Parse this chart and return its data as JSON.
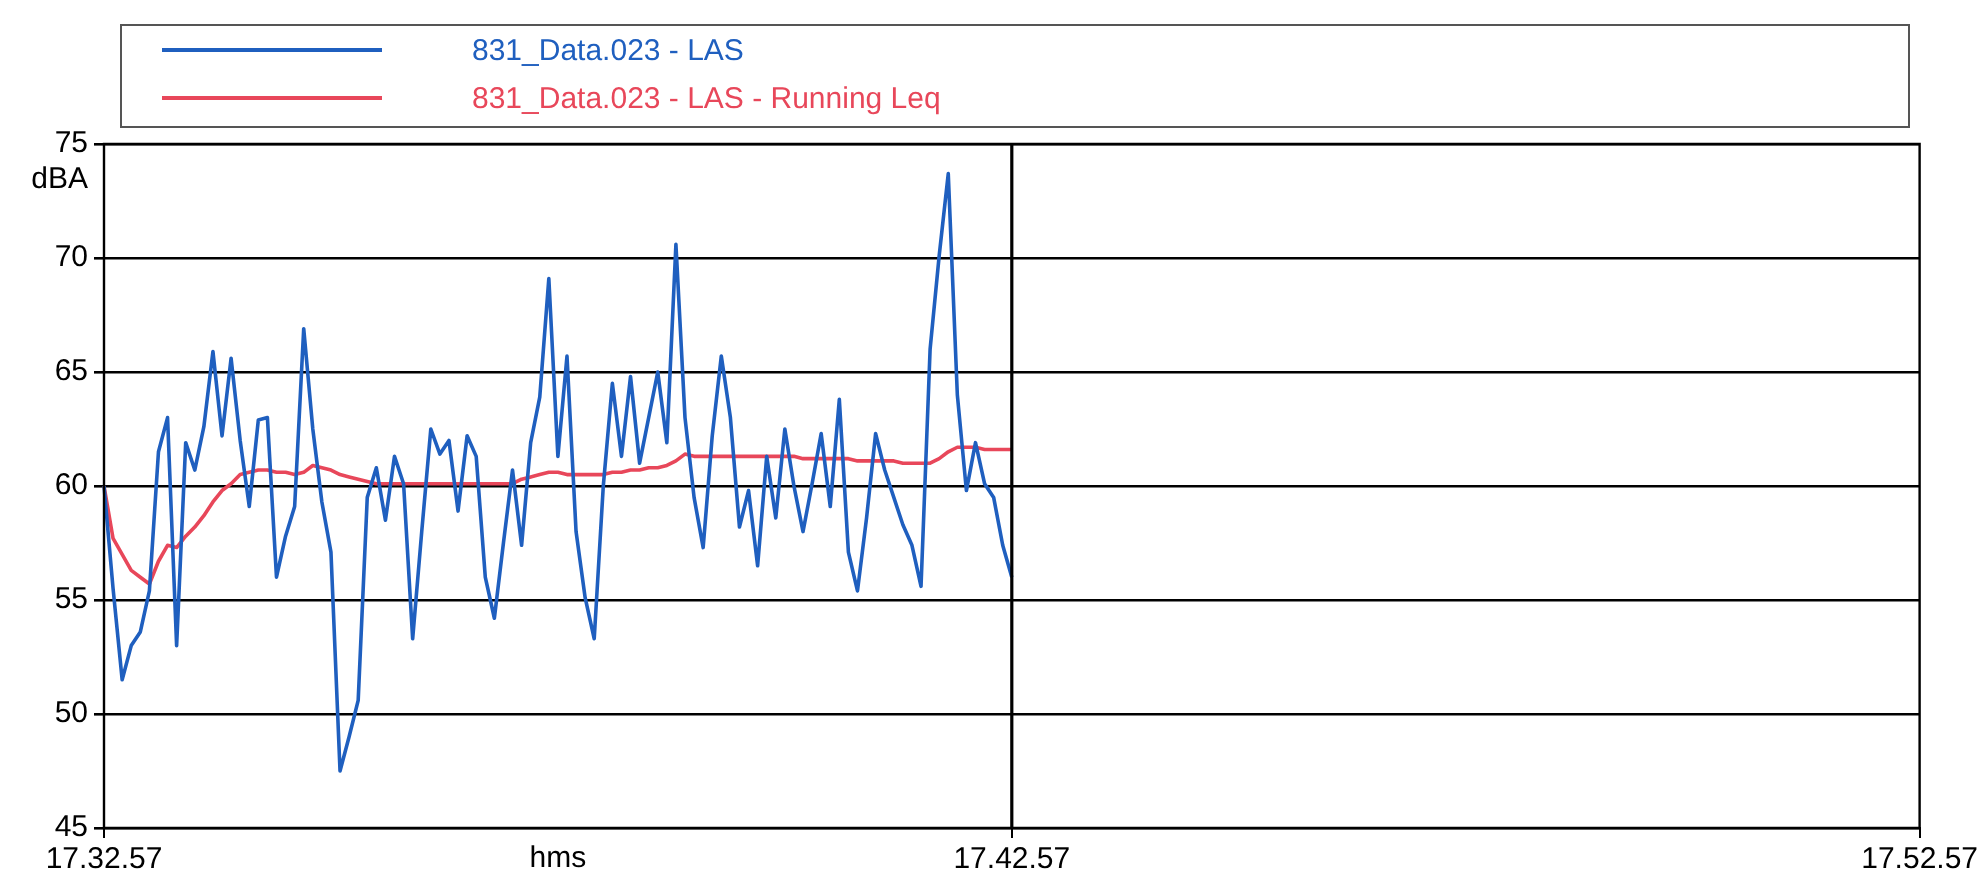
{
  "chart_data": {
    "type": "line",
    "xlabel": "hms",
    "ylabel": "dBA",
    "categories": [
      "17.32.57",
      null,
      null,
      null,
      null,
      null,
      null,
      null,
      null,
      null,
      null,
      null,
      null,
      null,
      null,
      null,
      null,
      null,
      null,
      null,
      null,
      null,
      null,
      null,
      null,
      null,
      null,
      null,
      null,
      null,
      null,
      null,
      null,
      null,
      null,
      null,
      null,
      null,
      null,
      null,
      null,
      null,
      null,
      null,
      null,
      null,
      null,
      null,
      null,
      null,
      null,
      null,
      null,
      null,
      null,
      null,
      null,
      null,
      null,
      null,
      null,
      null,
      null,
      null,
      null,
      null,
      null,
      null,
      null,
      null,
      null,
      null,
      null,
      null,
      null,
      null,
      null,
      null,
      null,
      null,
      null,
      null,
      null,
      null,
      null,
      null,
      null,
      null,
      null,
      null,
      null,
      null,
      null,
      null,
      null,
      null,
      null,
      null,
      null,
      null,
      "17.42.57",
      null,
      null,
      null,
      null,
      null,
      null,
      null,
      null,
      null,
      null,
      null,
      null,
      null,
      null,
      null,
      null,
      null,
      null,
      null,
      null,
      null,
      null,
      null,
      null,
      null,
      null,
      null,
      null,
      null,
      null,
      null,
      null,
      null,
      null,
      null,
      null,
      null,
      null,
      null,
      null,
      null,
      null,
      null,
      null,
      null,
      null,
      null,
      null,
      null,
      null,
      null,
      null,
      null,
      null,
      null,
      null,
      null,
      null,
      null,
      null,
      null,
      null,
      null,
      null,
      null,
      null,
      null,
      null,
      null,
      null,
      null,
      null,
      null,
      null,
      null,
      null,
      null,
      null,
      null,
      null,
      null,
      null,
      null,
      null,
      null,
      null,
      null,
      null,
      null,
      null,
      null,
      null,
      null,
      null,
      null,
      null,
      null,
      null,
      null,
      "17.52.57"
    ],
    "ylim": [
      45,
      75
    ],
    "yticks": [
      45,
      50,
      55,
      60,
      65,
      70,
      75
    ],
    "grid": "y",
    "legend": "top",
    "marker": "none",
    "line_style": "solid",
    "ref_lines": [
      {
        "axis": "x",
        "value": "17.42.57",
        "color": "#000000"
      }
    ],
    "series": [
      {
        "name": "831_Data.023 - LAS",
        "color": "#1f5fbf",
        "values": [
          60,
          55.5,
          51.5,
          53,
          53.6,
          55.4,
          61.5,
          63,
          53,
          61.9,
          60.7,
          62.6,
          65.9,
          62.2,
          65.6,
          62,
          59.1,
          62.9,
          63,
          56,
          57.8,
          59.1,
          66.9,
          62.5,
          59.3,
          57.1,
          47.5,
          49,
          50.6,
          59.5,
          60.8,
          58.5,
          61.3,
          60.1,
          53.3,
          58,
          62.5,
          61.4,
          62,
          58.9,
          62.2,
          61.3,
          56,
          54.2,
          57.5,
          60.7,
          57.4,
          61.9,
          63.9,
          69.1,
          61.3,
          65.7,
          58,
          55.1,
          53.3,
          60,
          64.5,
          61.3,
          64.8,
          61,
          63,
          65,
          61.9,
          70.6,
          63,
          59.5,
          57.3,
          62.2,
          65.7,
          63,
          58.2,
          59.8,
          56.5,
          61.3,
          58.6,
          62.5,
          60,
          58,
          60.1,
          62.3,
          59.1,
          63.8,
          57.1,
          55.4,
          58.6,
          62.3,
          60.7,
          59.5,
          58.3,
          57.4,
          55.6,
          66,
          70.1,
          73.7,
          64,
          59.8,
          61.9,
          60.1,
          59.5,
          57.4,
          56,
          null,
          null,
          null,
          null,
          null,
          null,
          null,
          null,
          null,
          null,
          null,
          null,
          null,
          null,
          null,
          null,
          null,
          null,
          null,
          null,
          null,
          null,
          null,
          null,
          null,
          null,
          null,
          null,
          null,
          null,
          null,
          null,
          null,
          null,
          null,
          null,
          null,
          null,
          null,
          null,
          null,
          null,
          null,
          null,
          null,
          null,
          null,
          null,
          null,
          null,
          null,
          null,
          null,
          null,
          null,
          null,
          null,
          null,
          null,
          null,
          null,
          null,
          null,
          null,
          null,
          null,
          null,
          null,
          null,
          null,
          null,
          null,
          null,
          null,
          null,
          null,
          null,
          null,
          null,
          null,
          null,
          null,
          null,
          null,
          null,
          null,
          null,
          null,
          null,
          null,
          null,
          null,
          null,
          null,
          null,
          null,
          null,
          null,
          null,
          null
        ]
      },
      {
        "name": "831_Data.023 - LAS - Running Leq",
        "color": "#e8475a",
        "values": [
          60,
          57.7,
          57,
          56.3,
          56,
          55.7,
          56.7,
          57.4,
          57.3,
          57.8,
          58.2,
          58.7,
          59.3,
          59.8,
          60.1,
          60.5,
          60.6,
          60.7,
          60.7,
          60.6,
          60.6,
          60.5,
          60.6,
          60.9,
          60.8,
          60.7,
          60.5,
          60.4,
          60.3,
          60.2,
          60.1,
          60.1,
          60.1,
          60.1,
          60.1,
          60.1,
          60.1,
          60.1,
          60.1,
          60.1,
          60.1,
          60.1,
          60.1,
          60.1,
          60.1,
          60.1,
          60.3,
          60.4,
          60.5,
          60.6,
          60.6,
          60.5,
          60.5,
          60.5,
          60.5,
          60.5,
          60.6,
          60.6,
          60.7,
          60.7,
          60.8,
          60.8,
          60.9,
          61.1,
          61.4,
          61.3,
          61.3,
          61.3,
          61.3,
          61.3,
          61.3,
          61.3,
          61.3,
          61.3,
          61.3,
          61.3,
          61.3,
          61.2,
          61.2,
          61.2,
          61.2,
          61.2,
          61.2,
          61.1,
          61.1,
          61.1,
          61.1,
          61.1,
          61.0,
          61.0,
          61.0,
          61.0,
          61.2,
          61.5,
          61.7,
          61.7,
          61.7,
          61.6,
          61.6,
          61.6,
          61.6,
          null,
          null,
          null,
          null,
          null,
          null,
          null,
          null,
          null,
          null,
          null,
          null,
          null,
          null,
          null,
          null,
          null,
          null,
          null,
          null,
          null,
          null,
          null,
          null,
          null,
          null,
          null,
          null,
          null,
          null,
          null,
          null,
          null,
          null,
          null,
          null,
          null,
          null,
          null,
          null,
          null,
          null,
          null,
          null,
          null,
          null,
          null,
          null,
          null,
          null,
          null,
          null,
          null,
          null,
          null,
          null,
          null,
          null,
          null,
          null,
          null,
          null,
          null,
          null,
          null,
          null,
          null,
          null,
          null,
          null,
          null,
          null,
          null,
          null,
          null,
          null,
          null,
          null,
          null,
          null,
          null,
          null,
          null,
          null,
          null,
          null,
          null,
          null,
          null,
          null,
          null,
          null,
          null,
          null,
          null,
          null,
          null,
          null,
          null,
          null
        ]
      }
    ]
  }
}
